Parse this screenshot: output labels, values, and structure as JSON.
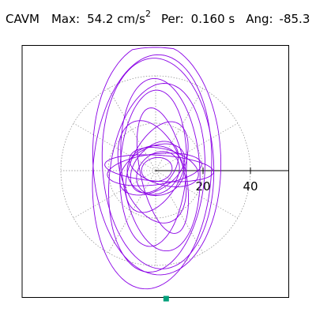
{
  "header": {
    "name": "CAVM",
    "max_label": "Max:",
    "max_value": "54.2 cm/s",
    "max_exponent": "2",
    "per_label": "Per:",
    "per_value": "0.160 s",
    "ang_label": "Ang:",
    "ang_value": "-85.3"
  },
  "colors": {
    "trace": "#8a00e6",
    "marker": "#00a07a",
    "grid": "#888888",
    "axis": "#000000"
  },
  "chart_data": {
    "type": "polar-orbit",
    "title": "",
    "radial_ticks": [
      20,
      40
    ],
    "radial_tick_labels": [
      "20",
      "40"
    ],
    "grid_rings": [
      20,
      40
    ],
    "spokes_deg": [
      0,
      30,
      60,
      90,
      120,
      150,
      180,
      210,
      240,
      270,
      300,
      330
    ],
    "grid": true,
    "peak": {
      "magnitude": 54.2,
      "angle_deg": -85.3
    },
    "series": [
      {
        "loops": [
          {
            "cx": 0.5,
            "cy": 5.0,
            "a": 27.0,
            "b": 49.0,
            "rot": 2
          },
          {
            "cx": -1.5,
            "cy": -0.5,
            "a": 25.0,
            "b": 49.5,
            "rot": -4
          },
          {
            "cx": 1.0,
            "cy": 3.0,
            "a": 23.5,
            "b": 44.5,
            "rot": 3
          },
          {
            "cx": 0.5,
            "cy": -3.0,
            "a": 20.0,
            "b": 40.0,
            "rot": -6
          },
          {
            "cx": 2.0,
            "cy": 2.5,
            "a": 16.5,
            "b": 36.5,
            "rot": 5
          },
          {
            "cx": -1.0,
            "cy": 1.0,
            "a": 14.0,
            "b": 33.0,
            "rot": -3
          },
          {
            "cx": 3.0,
            "cy": 0.0,
            "a": 9.5,
            "b": 27.0,
            "rot": 12
          },
          {
            "cx": -1.5,
            "cy": -0.5,
            "a": 13.0,
            "b": 22.5,
            "rot": 20
          },
          {
            "cx": 0.5,
            "cy": 1.5,
            "a": 11.0,
            "b": 20.5,
            "rot": -25
          },
          {
            "cx": 1.5,
            "cy": 1.0,
            "a": 23.0,
            "b": 5.5,
            "rot": -4
          },
          {
            "cx": -0.5,
            "cy": 0.5,
            "a": 20.0,
            "b": 6.5,
            "rot": 7
          },
          {
            "cx": 3.5,
            "cy": 1.5,
            "a": 15.0,
            "b": 7.5,
            "rot": -16
          },
          {
            "cx": -1.5,
            "cy": 0.5,
            "a": 15.0,
            "b": 9.0,
            "rot": 30
          },
          {
            "cx": 0.0,
            "cy": 0.0,
            "a": 12.0,
            "b": 10.5,
            "rot": 0
          },
          {
            "cx": 1.0,
            "cy": -1.0,
            "a": 10.0,
            "b": 8.0,
            "rot": 45
          },
          {
            "cx": -0.5,
            "cy": 1.5,
            "a": 8.0,
            "b": 12.5,
            "rot": -40
          },
          {
            "cx": 0.5,
            "cy": 0.5,
            "a": 6.5,
            "b": 5.0,
            "rot": 10
          }
        ]
      }
    ]
  }
}
